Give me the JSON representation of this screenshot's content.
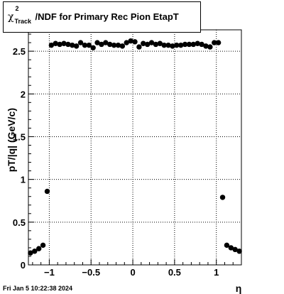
{
  "title": {
    "chi": "χ",
    "superscript": "2",
    "subscript": "Track",
    "rest": "/NDF for Primary Rec Pion EtapT"
  },
  "timestamp": "Fri Jan  5 10:22:38 2024",
  "chart_data": {
    "type": "scatter",
    "xlabel": "η",
    "ylabel": "pT/|q| (GeV/c)",
    "xlim": [
      -1.25,
      1.3
    ],
    "ylim": [
      0,
      2.75
    ],
    "grid": true,
    "marker_color": "#000000",
    "xticks": [
      {
        "value": -1,
        "label": "−1"
      },
      {
        "value": -0.5,
        "label": "−0.5"
      },
      {
        "value": 0,
        "label": "0"
      },
      {
        "value": 0.5,
        "label": "0.5"
      },
      {
        "value": 1,
        "label": "1"
      }
    ],
    "yticks": [
      {
        "value": 0,
        "label": "0"
      },
      {
        "value": 0.5,
        "label": "0.5"
      },
      {
        "value": 1,
        "label": "1"
      },
      {
        "value": 1.5,
        "label": "1.5"
      },
      {
        "value": 2,
        "label": "2"
      },
      {
        "value": 2.5,
        "label": "2.5"
      }
    ],
    "points": [
      [
        -1.225,
        0.14
      ],
      [
        -1.175,
        0.16
      ],
      [
        -1.125,
        0.19
      ],
      [
        -1.075,
        0.23
      ],
      [
        -1.025,
        0.86
      ],
      [
        -0.975,
        2.57
      ],
      [
        -0.925,
        2.59
      ],
      [
        -0.875,
        2.58
      ],
      [
        -0.825,
        2.59
      ],
      [
        -0.775,
        2.58
      ],
      [
        -0.725,
        2.57
      ],
      [
        -0.675,
        2.56
      ],
      [
        -0.625,
        2.6
      ],
      [
        -0.575,
        2.57
      ],
      [
        -0.525,
        2.57
      ],
      [
        -0.475,
        2.54
      ],
      [
        -0.425,
        2.6
      ],
      [
        -0.375,
        2.58
      ],
      [
        -0.325,
        2.6
      ],
      [
        -0.275,
        2.58
      ],
      [
        -0.225,
        2.57
      ],
      [
        -0.175,
        2.57
      ],
      [
        -0.125,
        2.56
      ],
      [
        -0.075,
        2.6
      ],
      [
        -0.025,
        2.62
      ],
      [
        0.025,
        2.61
      ],
      [
        0.075,
        2.55
      ],
      [
        0.125,
        2.59
      ],
      [
        0.175,
        2.58
      ],
      [
        0.225,
        2.6
      ],
      [
        0.275,
        2.58
      ],
      [
        0.325,
        2.59
      ],
      [
        0.375,
        2.57
      ],
      [
        0.425,
        2.57
      ],
      [
        0.475,
        2.56
      ],
      [
        0.525,
        2.57
      ],
      [
        0.575,
        2.57
      ],
      [
        0.625,
        2.58
      ],
      [
        0.675,
        2.58
      ],
      [
        0.725,
        2.58
      ],
      [
        0.775,
        2.59
      ],
      [
        0.825,
        2.58
      ],
      [
        0.875,
        2.56
      ],
      [
        0.925,
        2.55
      ],
      [
        0.975,
        2.6
      ],
      [
        1.025,
        2.6
      ],
      [
        1.075,
        0.79
      ],
      [
        1.125,
        0.23
      ],
      [
        1.175,
        0.2
      ],
      [
        1.225,
        0.18
      ],
      [
        1.275,
        0.16
      ]
    ]
  }
}
